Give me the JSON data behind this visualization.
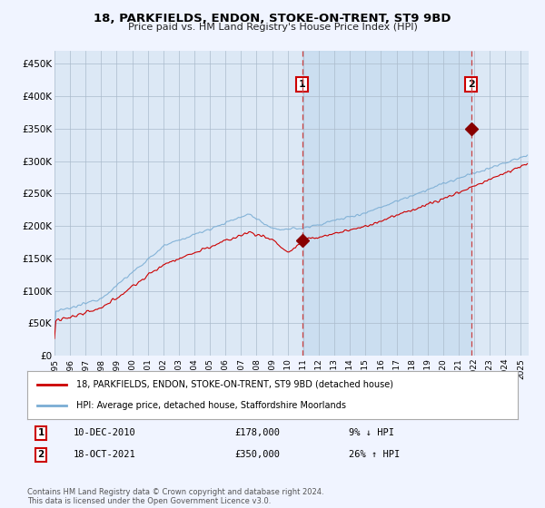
{
  "title": "18, PARKFIELDS, ENDON, STOKE-ON-TRENT, ST9 9BD",
  "subtitle": "Price paid vs. HM Land Registry's House Price Index (HPI)",
  "background_color": "#f0f4ff",
  "plot_bg_color": "#dce8f5",
  "grid_color": "#aabbcc",
  "ylabel_ticks": [
    "£0",
    "£50K",
    "£100K",
    "£150K",
    "£200K",
    "£250K",
    "£300K",
    "£350K",
    "£400K",
    "£450K"
  ],
  "ytick_values": [
    0,
    50000,
    100000,
    150000,
    200000,
    250000,
    300000,
    350000,
    400000,
    450000
  ],
  "ylim": [
    0,
    470000
  ],
  "xlim_start": 1995.0,
  "xlim_end": 2025.5,
  "sale1_date": 2010.94,
  "sale1_price": 178000,
  "sale1_label": "1",
  "sale1_text": "10-DEC-2010",
  "sale1_amount": "£178,000",
  "sale1_pct": "9% ↓ HPI",
  "sale2_date": 2021.79,
  "sale2_price": 350000,
  "sale2_label": "2",
  "sale2_text": "18-OCT-2021",
  "sale2_amount": "£350,000",
  "sale2_pct": "26% ↑ HPI",
  "legend_line1": "18, PARKFIELDS, ENDON, STOKE-ON-TRENT, ST9 9BD (detached house)",
  "legend_line2": "HPI: Average price, detached house, Staffordshire Moorlands",
  "red_line_color": "#cc0000",
  "blue_line_color": "#7aadd4",
  "footnote": "Contains HM Land Registry data © Crown copyright and database right 2024.\nThis data is licensed under the Open Government Licence v3.0.",
  "xtick_years": [
    1995,
    1996,
    1997,
    1998,
    1999,
    2000,
    2001,
    2002,
    2003,
    2004,
    2005,
    2006,
    2007,
    2008,
    2009,
    2010,
    2011,
    2012,
    2013,
    2014,
    2015,
    2016,
    2017,
    2018,
    2019,
    2020,
    2021,
    2022,
    2023,
    2024,
    2025
  ]
}
